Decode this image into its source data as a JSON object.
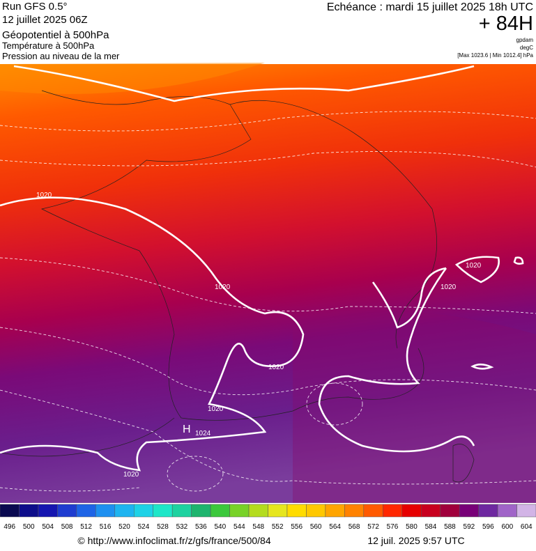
{
  "header": {
    "run": "Run GFS 0.5°",
    "run_date": "12 juillet 2025 06Z",
    "field1": "Géopotentiel à 500hPa",
    "field2": "Température à 500hPa",
    "field3": "Pression au niveau de la mer",
    "valid": "Echéance : mardi 15 juillet 2025 18h UTC",
    "lead": "+ 84H",
    "unit1": "gpdam",
    "unit2": "degC",
    "range": "[Max 1023.6 | Min 1012.4] hPa"
  },
  "map": {
    "labels": [
      "1020",
      "1020",
      "1020",
      "1020",
      "1020",
      "1020",
      "1020",
      "H",
      "1024"
    ]
  },
  "colorbar": {
    "values": [
      496,
      500,
      504,
      508,
      512,
      516,
      520,
      524,
      528,
      532,
      536,
      540,
      544,
      548,
      552,
      556,
      560,
      564,
      568,
      572,
      576,
      580,
      584,
      588,
      592,
      596,
      600,
      604
    ],
    "colors": [
      "#0a0a50",
      "#0d0d8a",
      "#1515b0",
      "#1e3cd0",
      "#1e64e6",
      "#1e90f0",
      "#1eb4f0",
      "#1ed2e6",
      "#1ee6c8",
      "#1ed2a0",
      "#1eb46e",
      "#3cc83c",
      "#78d228",
      "#b4dc1e",
      "#e6e61e",
      "#ffdc00",
      "#ffc800",
      "#ffa500",
      "#ff8200",
      "#ff5a00",
      "#ff2800",
      "#e60000",
      "#c8001e",
      "#a0003c",
      "#780078",
      "#6e28a0",
      "#a064c8",
      "#d2b4e6"
    ]
  },
  "footer": {
    "source": "© http://www.infoclimat.fr/z/gfs/france/500/84",
    "generated": "12 juil. 2025  9:57 UTC"
  }
}
